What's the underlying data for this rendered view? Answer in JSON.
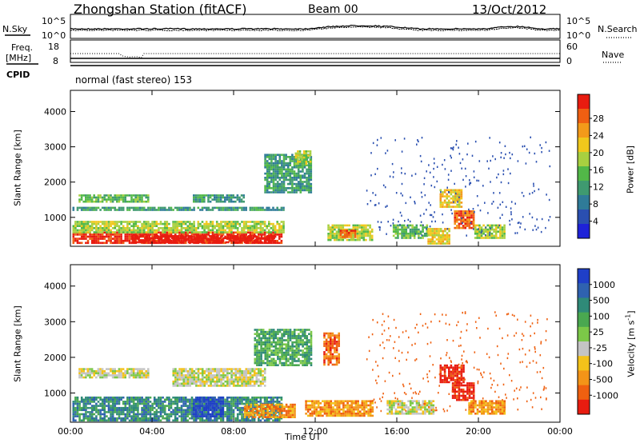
{
  "header": {
    "station": "Zhongshan Station (fitACF)",
    "beam": "Beam 00",
    "date": "13/Oct/2012"
  },
  "top_panels": {
    "nsky_label": "N.Sky",
    "nsky_ticks": [
      "10^5",
      "10^0"
    ],
    "nsearch_label": "N.Search",
    "nsearch_ticks": [
      "10^5",
      "10^0"
    ],
    "freq_label": "Freq.",
    "freq_unit": "[MHz]",
    "freq_ticks": [
      "18",
      "8"
    ],
    "nave_label": "Nave",
    "nave_ticks": [
      "60",
      "0"
    ],
    "cpid_label": "CPID",
    "cpid_text": "normal (fast stereo) 153"
  },
  "chart_data": [
    {
      "type": "heatmap",
      "name": "power-panel",
      "ylabel": "Slant Range [km]",
      "xlabel": "",
      "x_ticks": [
        "00:00",
        "04:00",
        "08:00",
        "12:00",
        "16:00",
        "20:00",
        "00:00"
      ],
      "xlim_hours": [
        0,
        24
      ],
      "ylim_km": [
        180,
        4600
      ],
      "y_ticks": [
        1000,
        2000,
        3000,
        4000
      ],
      "colorbar": {
        "label": "Power [dB]",
        "ticks": [
          "4",
          "8",
          "12",
          "16",
          "20",
          "24",
          "28"
        ],
        "colors": [
          "#1e22d8",
          "#2a4fb0",
          "#2f7b98",
          "#3f9a70",
          "#52b848",
          "#a8d040",
          "#f0c81c",
          "#f39a1a",
          "#ef5f12",
          "#e81c10"
        ]
      },
      "regions": [
        {
          "t0": 0.1,
          "t1": 10.3,
          "r0": 250,
          "r1": 600,
          "level": 9
        },
        {
          "t0": 3.0,
          "t1": 10.0,
          "r0": 300,
          "r1": 500,
          "level": 10
        },
        {
          "t0": 0.1,
          "t1": 10.5,
          "r0": 600,
          "r1": 900,
          "level": 5
        },
        {
          "t0": 0.1,
          "t1": 10.5,
          "r0": 1200,
          "r1": 1300,
          "level": 3
        },
        {
          "t0": 0.4,
          "t1": 3.8,
          "r0": 1450,
          "r1": 1650,
          "level": 4
        },
        {
          "t0": 6.0,
          "t1": 8.5,
          "r0": 1450,
          "r1": 1650,
          "level": 3
        },
        {
          "t0": 9.5,
          "t1": 11.8,
          "r0": 1700,
          "r1": 2800,
          "level": 3
        },
        {
          "t0": 11.0,
          "t1": 11.8,
          "r0": 2500,
          "r1": 2900,
          "level": 5
        },
        {
          "t0": 12.6,
          "t1": 14.8,
          "r0": 350,
          "r1": 800,
          "level": 5
        },
        {
          "t0": 13.2,
          "t1": 14.0,
          "r0": 450,
          "r1": 650,
          "level": 8
        },
        {
          "t0": 15.8,
          "t1": 17.5,
          "r0": 400,
          "r1": 800,
          "level": 4
        },
        {
          "t0": 18.1,
          "t1": 19.2,
          "r0": 1300,
          "r1": 1800,
          "level": 6
        },
        {
          "t0": 18.8,
          "t1": 19.8,
          "r0": 700,
          "r1": 1200,
          "level": 8
        },
        {
          "t0": 17.5,
          "t1": 18.6,
          "r0": 250,
          "r1": 700,
          "level": 6
        },
        {
          "t0": 19.8,
          "t1": 21.3,
          "r0": 400,
          "r1": 800,
          "level": 5
        }
      ]
    },
    {
      "type": "heatmap",
      "name": "velocity-panel",
      "ylabel": "Slant Range [km]",
      "xlabel": "Time UT",
      "x_ticks": [
        "00:00",
        "04:00",
        "08:00",
        "12:00",
        "16:00",
        "20:00",
        "00:00"
      ],
      "xlim_hours": [
        0,
        24
      ],
      "ylim_km": [
        180,
        4600
      ],
      "y_ticks": [
        1000,
        2000,
        3000,
        4000
      ],
      "colorbar": {
        "label": "Velocity [m s",
        "label_sup": "-1",
        "label_tail": "]",
        "ticks": [
          "1000",
          "500",
          "100",
          "25",
          "-25",
          "-100",
          "-500",
          "-1000"
        ],
        "colors": [
          "#1f3fc8",
          "#2f62b0",
          "#2f8a78",
          "#4aa850",
          "#7cc848",
          "#c4c4c4",
          "#f3c21a",
          "#f39418",
          "#ef6010",
          "#e81c10"
        ]
      },
      "regions": [
        {
          "t0": 0.1,
          "t1": 10.3,
          "r0": 250,
          "r1": 900,
          "level": 2
        },
        {
          "t0": 6.0,
          "t1": 7.5,
          "r0": 350,
          "r1": 900,
          "level": 0
        },
        {
          "t0": 0.4,
          "t1": 3.8,
          "r0": 1450,
          "r1": 1700,
          "level": 5
        },
        {
          "t0": 5.0,
          "t1": 9.5,
          "r0": 1200,
          "r1": 1700,
          "level": 5
        },
        {
          "t0": 9.0,
          "t1": 11.8,
          "r0": 1800,
          "r1": 2800,
          "level": 3
        },
        {
          "t0": 8.5,
          "t1": 11.0,
          "r0": 300,
          "r1": 700,
          "level": 7
        },
        {
          "t0": 11.5,
          "t1": 14.8,
          "r0": 350,
          "r1": 800,
          "level": 7
        },
        {
          "t0": 12.4,
          "t1": 13.2,
          "r0": 1800,
          "r1": 2700,
          "level": 8
        },
        {
          "t0": 15.5,
          "t1": 17.8,
          "r0": 400,
          "r1": 800,
          "level": 5
        },
        {
          "t0": 18.1,
          "t1": 19.3,
          "r0": 1300,
          "r1": 1800,
          "level": 9
        },
        {
          "t0": 18.7,
          "t1": 19.8,
          "r0": 800,
          "r1": 1300,
          "level": 9
        },
        {
          "t0": 19.5,
          "t1": 21.3,
          "r0": 400,
          "r1": 800,
          "level": 7
        }
      ]
    }
  ]
}
